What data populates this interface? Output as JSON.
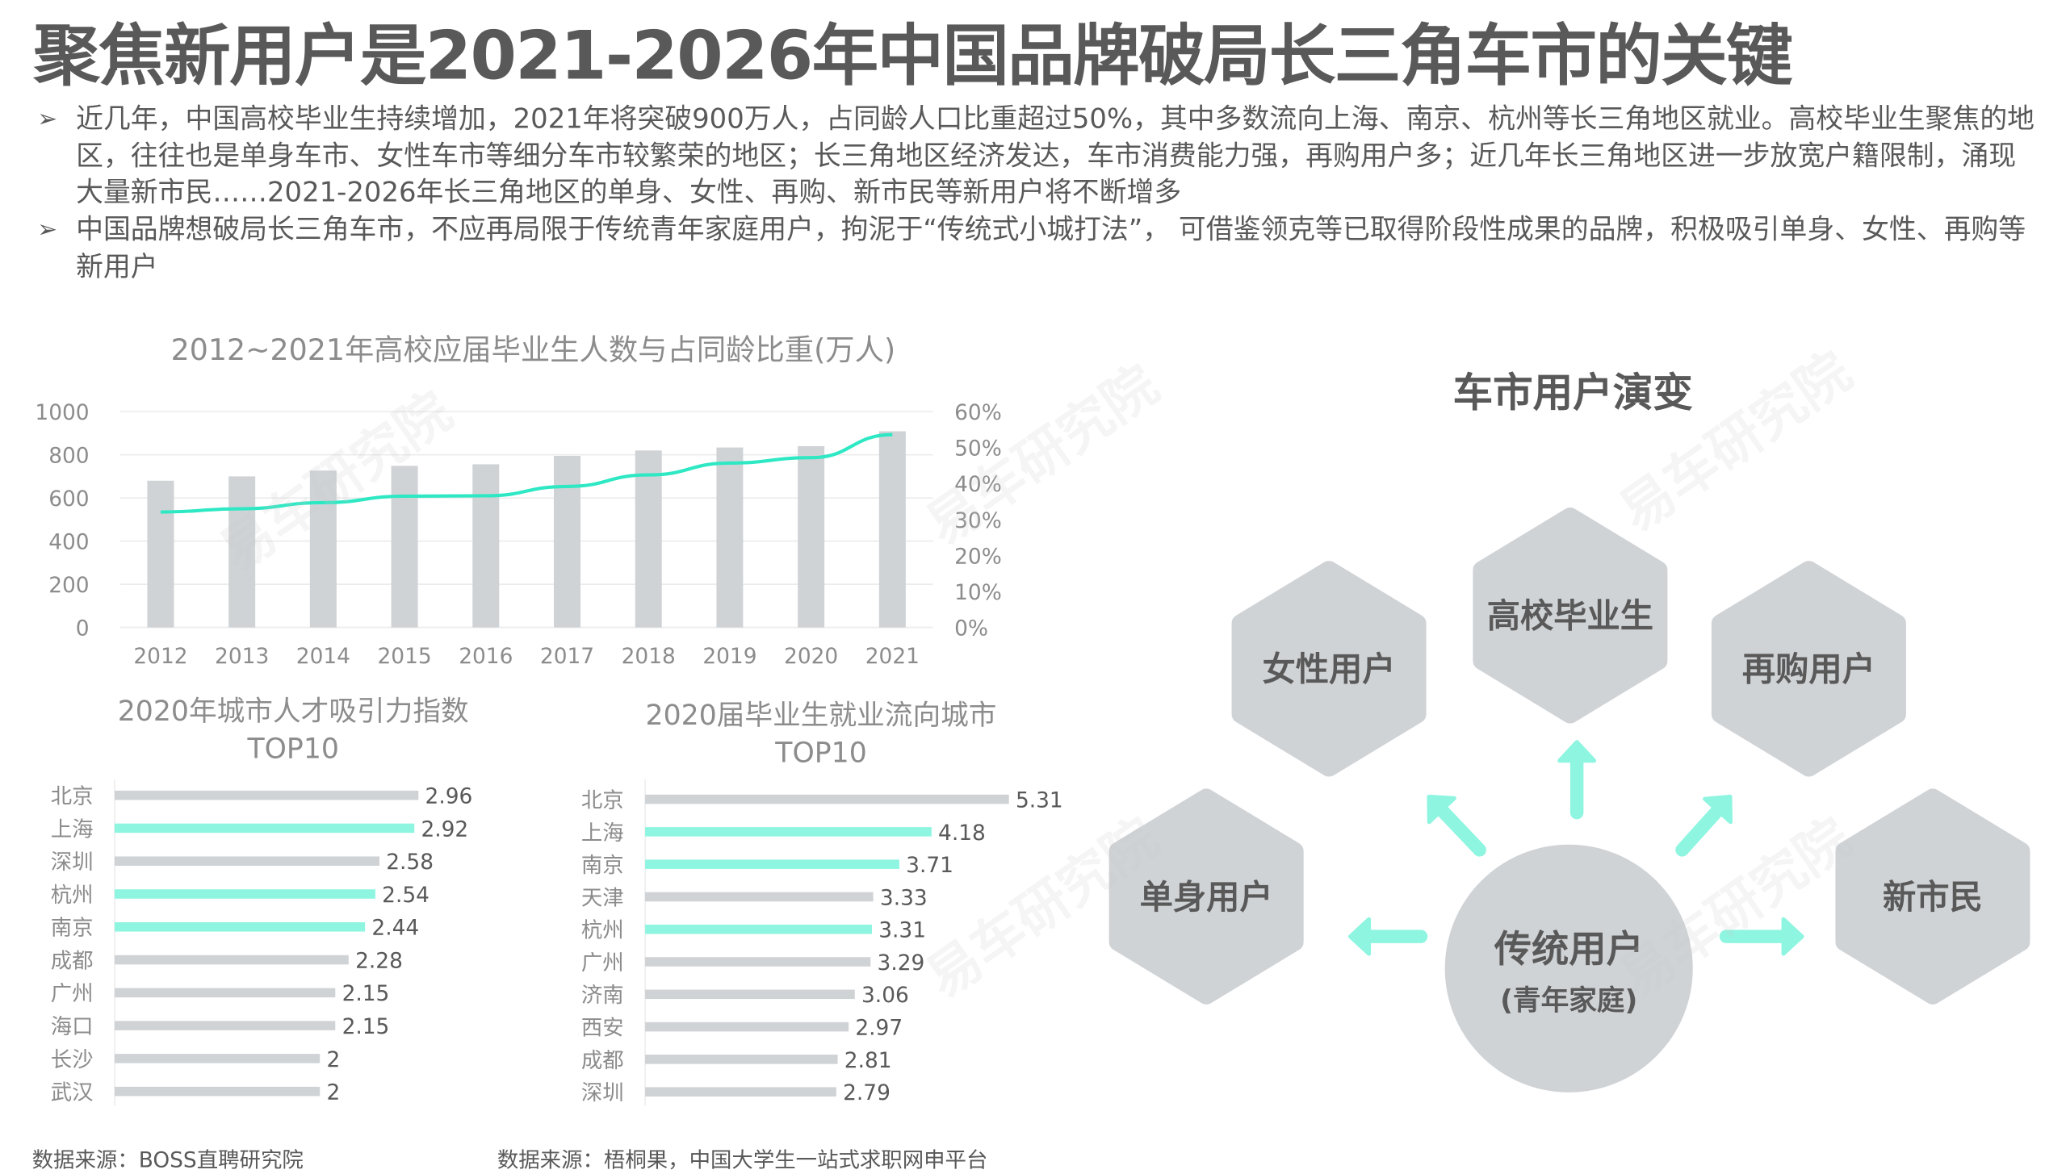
{
  "title": "聚焦新用户是2021-2026年中国品牌破局长三角车市的关键",
  "bullets": [
    "近几年，中国高校毕业生持续增加，2021年将突破900万人，占同龄人口比重超过50%，其中多数流向上海、南京、杭州等长三角地区就业。高校毕业生聚焦的地区，往往也是单身车市、女性车市等细分车市较繁荣的地区；长三角地区经济发达，车市消费能力强，再购用户多；近几年长三角地区进一步放宽户籍限制，涌现大量新市民……2021-2026年长三角地区的单身、女性、再购、新市民等新用户将不断增多",
    "中国品牌想破局长三角车市，不应再局限于传统青年家庭用户，拘泥于“传统式小城打法”， 可借鉴领克等已取得阶段性成果的品牌，积极吸引单身、女性、再购等新用户"
  ],
  "bullet_marker": "➢",
  "watermark": "易车研究院 Yiche Research",
  "colors": {
    "bar": "#d0d3d6",
    "accent": "#8ef5e0",
    "line": "#2ee8c4",
    "text": "#595959"
  },
  "chart_data": [
    {
      "type": "bar+line",
      "title": "2012~2021年高校应届毕业生人数与占同龄比重(万人)",
      "categories": [
        "2012",
        "2013",
        "2014",
        "2015",
        "2016",
        "2017",
        "2018",
        "2019",
        "2020",
        "2021"
      ],
      "series": [
        {
          "type": "bar",
          "axis": "left",
          "values": [
            680,
            700,
            727,
            749,
            756,
            795,
            820,
            834,
            840,
            909
          ]
        },
        {
          "type": "line",
          "axis": "right",
          "values": [
            32.1,
            33.0,
            34.7,
            36.5,
            36.6,
            39.2,
            42.4,
            45.7,
            47.2,
            53.6
          ]
        }
      ],
      "ylim": [
        0,
        1000
      ],
      "yticks": [
        "0",
        "200",
        "400",
        "600",
        "800",
        "1000"
      ],
      "y2lim": [
        0,
        60
      ],
      "y2ticks": [
        "0%",
        "10%",
        "20%",
        "30%",
        "40%",
        "50%",
        "60%"
      ],
      "grid": true
    },
    {
      "type": "bar",
      "orientation": "horizontal",
      "title": [
        "2020年城市人才吸引力指数",
        "TOP10"
      ],
      "categories": [
        "北京",
        "上海",
        "深圳",
        "杭州",
        "南京",
        "成都",
        "广州",
        "海口",
        "长沙",
        "武汉"
      ],
      "values": [
        2.96,
        2.92,
        2.58,
        2.54,
        2.44,
        2.28,
        2.15,
        2.15,
        2,
        2
      ],
      "labels": [
        "2.96",
        "2.92",
        "2.58",
        "2.54",
        "2.44",
        "2.28",
        "2.15",
        "2.15",
        "2",
        "2"
      ],
      "highlighted": [
        "上海",
        "杭州",
        "南京"
      ]
    },
    {
      "type": "bar",
      "orientation": "horizontal",
      "title": [
        "2020届毕业生就业流向城市",
        "TOP10"
      ],
      "categories": [
        "北京",
        "上海",
        "南京",
        "天津",
        "杭州",
        "广州",
        "济南",
        "西安",
        "成都",
        "深圳"
      ],
      "values": [
        5.31,
        4.18,
        3.71,
        3.33,
        3.31,
        3.29,
        3.06,
        2.97,
        2.81,
        2.79
      ],
      "labels": [
        "5.31",
        "4.18",
        "3.71",
        "3.33",
        "3.31",
        "3.29",
        "3.06",
        "2.97",
        "2.81",
        "2.79"
      ],
      "highlighted": [
        "上海",
        "南京",
        "杭州"
      ]
    }
  ],
  "sources": [
    "数据来源：BOSS直聘研究院",
    "数据来源：梧桐果，中国大学生一站式求职网申平台"
  ],
  "diagram": {
    "title": "车市用户演变",
    "center": {
      "line1": "传统用户",
      "line2": "(青年家庭)"
    },
    "nodes": [
      "高校毕业生",
      "女性用户",
      "再购用户",
      "单身用户",
      "新市民"
    ]
  }
}
